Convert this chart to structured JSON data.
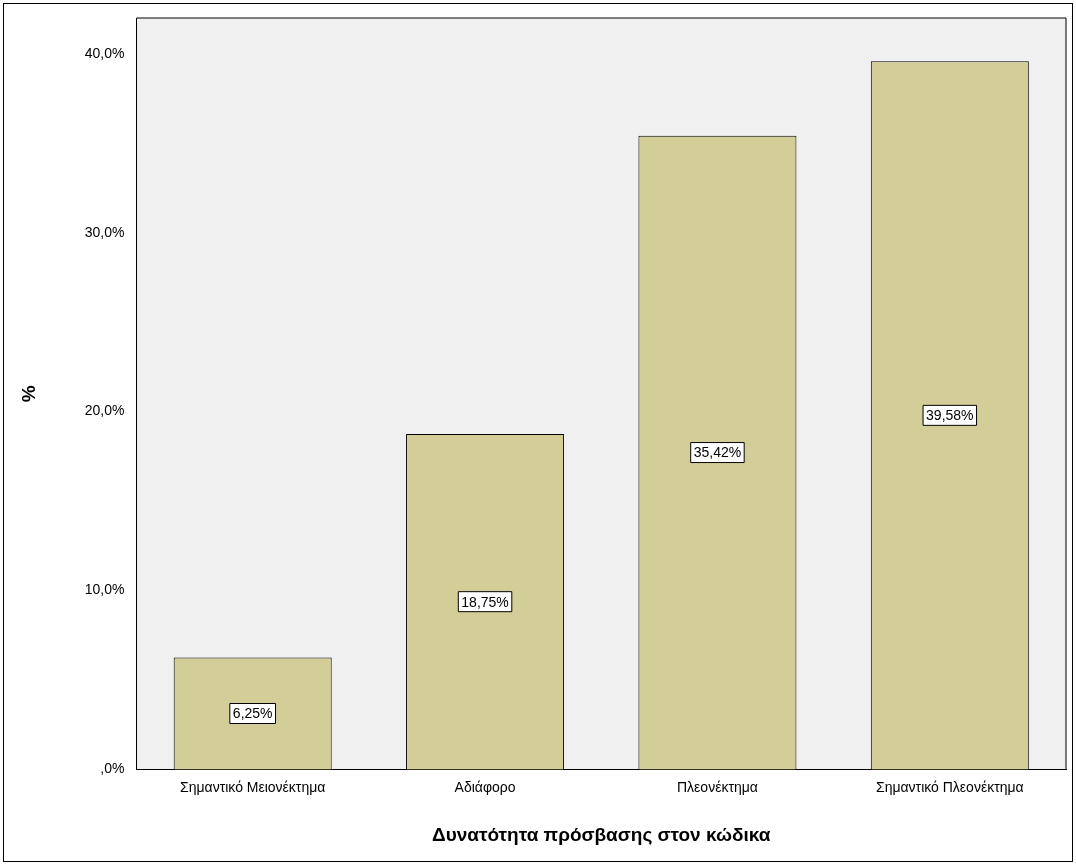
{
  "chart_data": {
    "type": "bar",
    "xlabel": "Δυνατότητα πρόσβασης στον κώδικα",
    "ylabel": "%",
    "categories": [
      "Σημαντικό Μειονέκτημα",
      "Αδιάφορο",
      "Πλεονέκτημα",
      "Σημαντικό Πλεονέκτημα"
    ],
    "values": [
      6.25,
      18.75,
      35.42,
      39.58
    ],
    "value_labels": [
      "6,25%",
      "18,75%",
      "35,42%",
      "39,58%"
    ],
    "color": "#d3ce98",
    "ylim": [
      0,
      42
    ],
    "yticks": [
      {
        "value": 0,
        "label": ",0%"
      },
      {
        "value": 10,
        "label": "10,0%"
      },
      {
        "value": 20,
        "label": "20,0%"
      },
      {
        "value": 30,
        "label": "30,0%"
      },
      {
        "value": 40,
        "label": "40,0%"
      }
    ],
    "grid": false,
    "legend": false
  }
}
